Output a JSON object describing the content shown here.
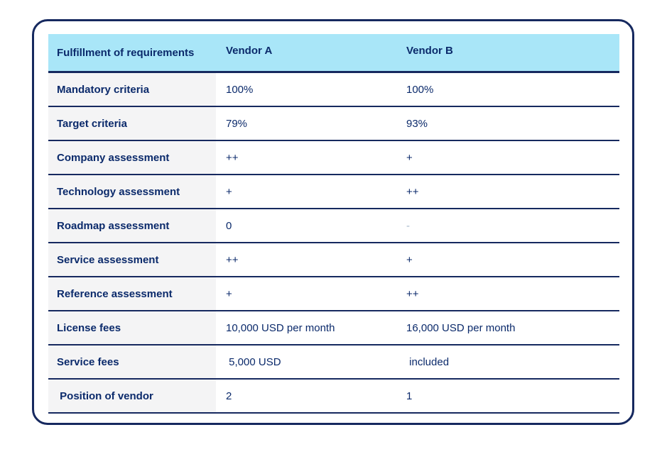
{
  "colors": {
    "border_navy": "#16295f",
    "header_bg": "#a9e6f8",
    "text_navy": "#0b2a6b",
    "label_col_bg": "#f4f4f5",
    "muted_dash": "#a4b6cb"
  },
  "table": {
    "header": {
      "col1": "Fulfillment of requirements",
      "col2": "Vendor A",
      "col3": "Vendor B"
    },
    "rows": [
      {
        "label": "Mandatory criteria",
        "vendor_a": "100%",
        "vendor_b": "100%"
      },
      {
        "label": "Target criteria",
        "vendor_a": "79%",
        "vendor_b": "93%"
      },
      {
        "label": "Company assessment",
        "vendor_a": "++",
        "vendor_b": "+"
      },
      {
        "label": "Technology assessment",
        "vendor_a": "+",
        "vendor_b": "++"
      },
      {
        "label": "Roadmap assessment",
        "vendor_a": "0",
        "vendor_b": "-"
      },
      {
        "label": "Service assessment",
        "vendor_a": "++",
        "vendor_b": "+"
      },
      {
        "label": "Reference assessment",
        "vendor_a": "+",
        "vendor_b": "++"
      },
      {
        "label": "License fees",
        "vendor_a": "10,000 USD per month",
        "vendor_b": "16,000 USD per month"
      },
      {
        "label": "Service fees",
        "vendor_a": " 5,000 USD",
        "vendor_b": " included"
      },
      {
        "label": " Position of vendor",
        "vendor_a": "2",
        "vendor_b": "1"
      }
    ]
  }
}
